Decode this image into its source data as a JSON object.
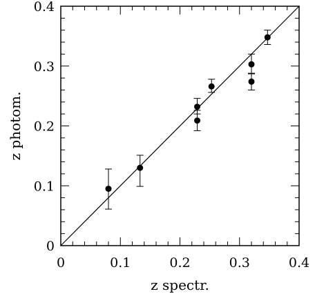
{
  "chart_data": {
    "type": "scatter",
    "xlabel": "z spectr.",
    "ylabel": "z photom.",
    "xlim": [
      0,
      0.4
    ],
    "ylim": [
      0,
      0.4
    ],
    "xticks": [
      "0",
      "0.1",
      "0.2",
      "0.3",
      "0.4"
    ],
    "yticks": [
      "0",
      "0.1",
      "0.2",
      "0.3",
      "0.4"
    ],
    "grid": false,
    "reference_line": {
      "from": [
        0,
        0
      ],
      "to": [
        0.4,
        0.4
      ]
    },
    "points": [
      {
        "x": 0.08,
        "y": 0.095,
        "err_low": 0.034,
        "err_high": 0.033
      },
      {
        "x": 0.133,
        "y": 0.13,
        "err_low": 0.031,
        "err_high": 0.021
      },
      {
        "x": 0.229,
        "y": 0.209,
        "err_low": 0.017,
        "err_high": 0.017
      },
      {
        "x": 0.229,
        "y": 0.232,
        "err_low": 0.012,
        "err_high": 0.014
      },
      {
        "x": 0.253,
        "y": 0.266,
        "err_low": 0.01,
        "err_high": 0.012
      },
      {
        "x": 0.32,
        "y": 0.274,
        "err_low": 0.014,
        "err_high": 0.014
      },
      {
        "x": 0.32,
        "y": 0.303,
        "err_low": 0.016,
        "err_high": 0.017
      },
      {
        "x": 0.347,
        "y": 0.348,
        "err_low": 0.012,
        "err_high": 0.012
      }
    ]
  }
}
